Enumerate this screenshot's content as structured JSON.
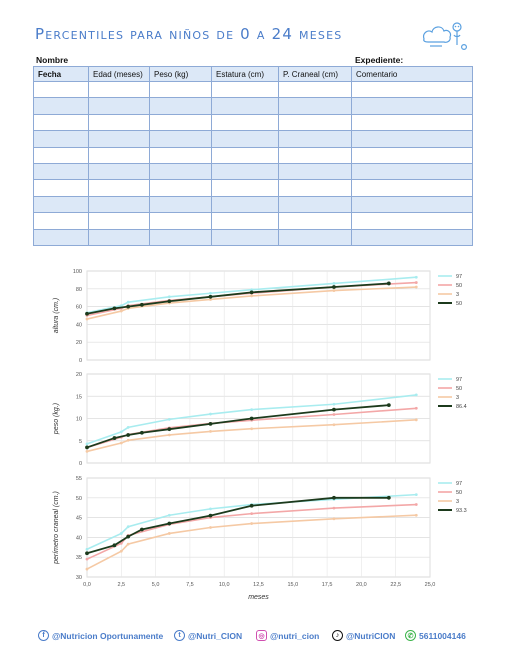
{
  "header": {
    "title": "Percentiles para niños de 0 a 24 meses",
    "nombre_label": "Nombre",
    "expediente_label": "Expediente:"
  },
  "table": {
    "columns": [
      "Fecha",
      "Edad (meses)",
      "Peso (kg)",
      "Estatura (cm)",
      "P. Craneal (cm)",
      "Comentario"
    ],
    "rows": 10
  },
  "chart_data": [
    {
      "type": "line",
      "ylabel": "altura (cm.)",
      "xlabel": "",
      "ylim": [
        0,
        100
      ],
      "yticks": [
        0,
        20,
        40,
        60,
        80,
        100
      ],
      "xlim": [
        0,
        25
      ],
      "series": [
        {
          "name": "97",
          "color": "#a8ecef",
          "x": [
            0,
            2.5,
            3,
            6,
            9,
            12,
            18,
            24
          ],
          "y": [
            53,
            61,
            65,
            71,
            75,
            79,
            86,
            93
          ]
        },
        {
          "name": "50",
          "color": "#f3a7a7",
          "x": [
            0,
            2.5,
            3,
            6,
            9,
            12,
            18,
            24
          ],
          "y": [
            50,
            58,
            61,
            67,
            71,
            75,
            82,
            87
          ]
        },
        {
          "name": "3",
          "color": "#f5c9a4",
          "x": [
            0,
            2.5,
            3,
            6,
            9,
            12,
            18,
            24
          ],
          "y": [
            46,
            55,
            58,
            64,
            68,
            72,
            78,
            82
          ]
        },
        {
          "name": "50",
          "color": "#1c3a1c",
          "x": [
            0,
            2,
            3,
            4,
            6,
            9,
            12,
            18,
            22
          ],
          "y": [
            52,
            58,
            60,
            62,
            66,
            71,
            76,
            82,
            86
          ]
        }
      ]
    },
    {
      "type": "line",
      "ylabel": "peso (kg.)",
      "xlabel": "",
      "ylim": [
        0,
        20
      ],
      "yticks": [
        0,
        5,
        10,
        15,
        20
      ],
      "xlim": [
        0,
        25
      ],
      "series": [
        {
          "name": "97",
          "color": "#a8ecef",
          "x": [
            0,
            2.5,
            3,
            6,
            9,
            12,
            18,
            24
          ],
          "y": [
            4.3,
            7.0,
            8.0,
            9.8,
            11.0,
            12.0,
            13.2,
            15.3
          ]
        },
        {
          "name": "50",
          "color": "#f3a7a7",
          "x": [
            0,
            2.5,
            3,
            6,
            9,
            12,
            18,
            24
          ],
          "y": [
            3.5,
            5.8,
            6.4,
            7.9,
            8.9,
            9.6,
            10.9,
            12.3
          ]
        },
        {
          "name": "3",
          "color": "#f5c9a4",
          "x": [
            0,
            2.5,
            3,
            6,
            9,
            12,
            18,
            24
          ],
          "y": [
            2.6,
            4.5,
            5.1,
            6.3,
            7.1,
            7.7,
            8.6,
            9.7
          ]
        },
        {
          "name": "86.4",
          "color": "#1c3a1c",
          "x": [
            0,
            2,
            3,
            4,
            6,
            9,
            12,
            18,
            22
          ],
          "y": [
            3.5,
            5.6,
            6.3,
            6.8,
            7.6,
            8.8,
            10.0,
            12.0,
            13.0
          ]
        }
      ]
    },
    {
      "type": "line",
      "ylabel": "perímetro craneal (cm.)",
      "xlabel": "meses",
      "ylim": [
        30,
        55
      ],
      "yticks": [
        30,
        35,
        40,
        45,
        50,
        55
      ],
      "xlim": [
        0,
        25
      ],
      "xticks": [
        "0,0",
        "2,5",
        "5,0",
        "7,5",
        "10,0",
        "12,5",
        "15,0",
        "17,5",
        "20,0",
        "22,5",
        "25,0"
      ],
      "series": [
        {
          "name": "97",
          "color": "#a8ecef",
          "x": [
            0,
            2.5,
            3,
            6,
            9,
            12,
            18,
            24
          ],
          "y": [
            37,
            41,
            42.7,
            45.6,
            47.2,
            48.3,
            49.6,
            50.8
          ]
        },
        {
          "name": "50",
          "color": "#f3a7a7",
          "x": [
            0,
            2.5,
            3,
            6,
            9,
            12,
            18,
            24
          ],
          "y": [
            34.5,
            38.5,
            40.5,
            43.3,
            45.0,
            46.0,
            47.4,
            48.3
          ]
        },
        {
          "name": "3",
          "color": "#f5c9a4",
          "x": [
            0,
            2.5,
            3,
            6,
            9,
            12,
            18,
            24
          ],
          "y": [
            32,
            36.5,
            38.3,
            41.0,
            42.5,
            43.5,
            44.7,
            45.6
          ]
        },
        {
          "name": "93.3",
          "color": "#1c3a1c",
          "x": [
            0,
            2,
            3,
            4,
            6,
            9,
            12,
            18,
            22
          ],
          "y": [
            36,
            38,
            40.2,
            42,
            43.5,
            45.5,
            48,
            50,
            50
          ]
        }
      ]
    }
  ],
  "footer": {
    "facebook": "@Nutricion Oportunamente",
    "twitter": "@Nutri_CION",
    "instagram": "@nutri_cion",
    "tiktok": "@NutriCION",
    "whatsapp": "5611004146",
    "accent": "#4a7cc9"
  }
}
